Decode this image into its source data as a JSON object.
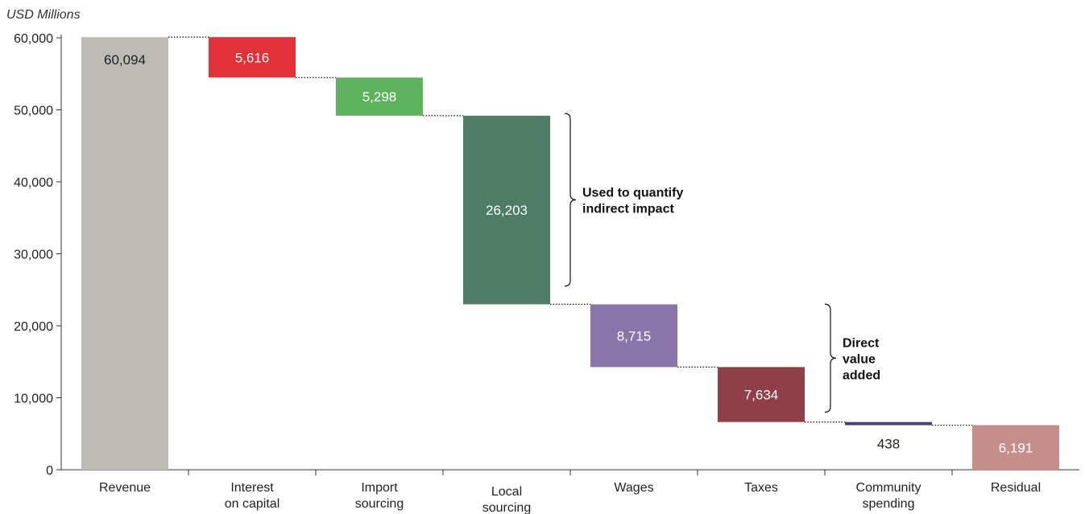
{
  "chart_data": {
    "type": "bar",
    "subtype": "waterfall",
    "unit_label": "USD Millions",
    "ylim": [
      0,
      60000
    ],
    "yticks": [
      0,
      10000,
      20000,
      30000,
      40000,
      50000,
      60000
    ],
    "ytick_labels": [
      "0",
      "10,000",
      "20,000",
      "30,000",
      "40,000",
      "50,000",
      "60,000"
    ],
    "categories": [
      [
        "Revenue"
      ],
      [
        "Interest",
        "on capital"
      ],
      [
        "Import",
        "sourcing"
      ],
      [
        "Local",
        "sourcing"
      ],
      [
        "Wages"
      ],
      [
        "Taxes"
      ],
      [
        "Community",
        "spending"
      ],
      [
        "Residual"
      ]
    ],
    "values": [
      60094,
      5616,
      5298,
      26203,
      8715,
      7634,
      438,
      6191
    ],
    "value_labels": [
      "60,094",
      "5,616",
      "5,298",
      "26,203",
      "8,715",
      "7,634",
      "438",
      "6,191"
    ],
    "colors": [
      "#bcbcb5",
      "#e3313a",
      "#5cb25d",
      "#4f7c64",
      "#8a75ab",
      "#8e3f48",
      "#4a3c79",
      "#c58e8a"
    ],
    "label_colors": [
      "#222222",
      "#ffffff",
      "#ffffff",
      "#ffffff",
      "#ffffff",
      "#ffffff",
      "#222222",
      "#ffffff"
    ],
    "annotations": [
      {
        "lines": [
          "Used to quantify",
          "indirect impact"
        ],
        "from": 49500,
        "to": 25500
      },
      {
        "lines": [
          "Direct",
          "value",
          "added"
        ],
        "from": 23000,
        "to": 8000
      }
    ],
    "grid": false,
    "connectors": "dotted"
  }
}
